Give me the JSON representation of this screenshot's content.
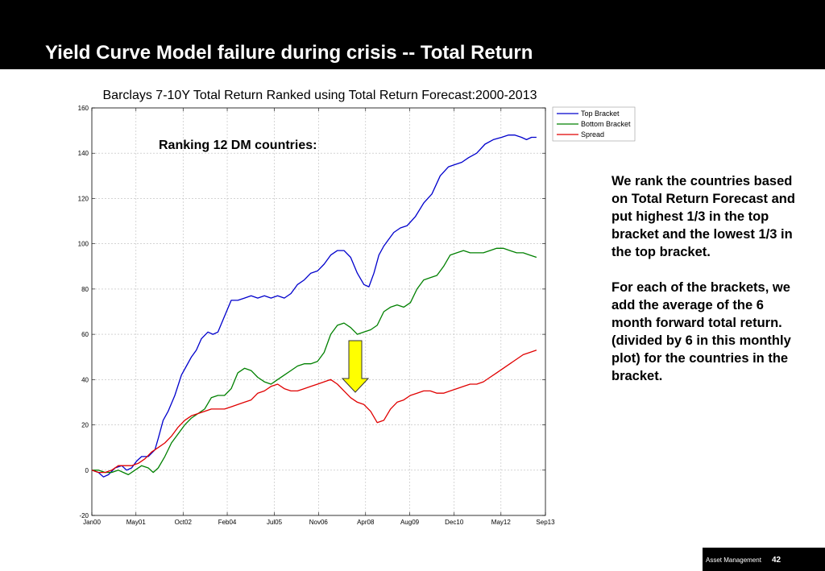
{
  "header": {
    "title": "Yield Curve Model failure during crisis -- Total Return"
  },
  "annotation": "Ranking 12 DM countries:",
  "side_note": {
    "paragraph1": "We rank the countries based on Total Return Forecast and put highest 1/3 in the top bracket and the lowest 1/3 in the top bracket.",
    "paragraph2": "For each of the brackets, we add the average of the 6 month forward total return. (divided by 6 in this monthly plot) for the countries in the bracket."
  },
  "footer": {
    "company": "Asset Management",
    "page": "42"
  },
  "chart_data": {
    "type": "line",
    "title": "Barclays 7-10Y Total Return Ranked using Total Return Forecast:2000-2013",
    "xlabel": "",
    "ylabel": "",
    "xlim": [
      2000.0,
      2013.67
    ],
    "ylim": [
      -20,
      160
    ],
    "grid": true,
    "legend_position": "top-right",
    "x_ticks": [
      {
        "label": "Jan00",
        "x": 2000.0
      },
      {
        "label": "May01",
        "x": 2001.33
      },
      {
        "label": "Oct02",
        "x": 2002.75
      },
      {
        "label": "Feb04",
        "x": 2004.08
      },
      {
        "label": "Jul05",
        "x": 2005.5
      },
      {
        "label": "Nov06",
        "x": 2006.83
      },
      {
        "label": "Apr08",
        "x": 2008.25
      },
      {
        "label": "Aug09",
        "x": 2009.58
      },
      {
        "label": "Dec10",
        "x": 2010.92
      },
      {
        "label": "May12",
        "x": 2012.33
      },
      {
        "label": "Sep13",
        "x": 2013.67
      }
    ],
    "y_ticks": [
      -20,
      0,
      20,
      40,
      60,
      80,
      100,
      120,
      140,
      160
    ],
    "series": [
      {
        "name": "Top Bracket",
        "color": "#0000cc",
        "x": [
          2000.0,
          2000.2,
          2000.35,
          2000.5,
          2000.7,
          2000.9,
          2001.05,
          2001.2,
          2001.35,
          2001.5,
          2001.7,
          2001.9,
          2002.0,
          2002.15,
          2002.3,
          2002.5,
          2002.7,
          2002.85,
          2003.0,
          2003.15,
          2003.3,
          2003.5,
          2003.65,
          2003.8,
          2004.0,
          2004.2,
          2004.4,
          2004.6,
          2004.8,
          2005.0,
          2005.2,
          2005.4,
          2005.6,
          2005.8,
          2006.0,
          2006.2,
          2006.4,
          2006.6,
          2006.8,
          2007.0,
          2007.2,
          2007.4,
          2007.6,
          2007.8,
          2008.0,
          2008.2,
          2008.35,
          2008.5,
          2008.65,
          2008.8,
          2008.95,
          2009.1,
          2009.3,
          2009.5,
          2009.75,
          2010.0,
          2010.25,
          2010.5,
          2010.75,
          2010.95,
          2011.15,
          2011.35,
          2011.6,
          2011.85,
          2012.1,
          2012.35,
          2012.55,
          2012.75,
          2012.95,
          2013.1,
          2013.25,
          2013.4
        ],
        "values": [
          0,
          -1,
          -3,
          -2,
          1,
          2,
          0,
          1,
          4,
          6,
          6,
          9,
          14,
          22,
          26,
          33,
          42,
          46,
          50,
          53,
          58,
          61,
          60,
          61,
          68,
          75,
          75,
          76,
          77,
          76,
          77,
          76,
          77,
          76,
          78,
          82,
          84,
          87,
          88,
          91,
          95,
          97,
          97,
          94,
          87,
          82,
          81,
          87,
          95,
          99,
          102,
          105,
          107,
          108,
          112,
          118,
          122,
          130,
          134,
          135,
          136,
          138,
          140,
          144,
          146,
          147,
          148,
          148,
          147,
          146,
          147,
          147
        ]
      },
      {
        "name": "Bottom Bracket",
        "color": "#008000",
        "x": [
          2000.0,
          2000.2,
          2000.4,
          2000.6,
          2000.8,
          2000.95,
          2001.1,
          2001.3,
          2001.5,
          2001.7,
          2001.85,
          2002.0,
          2002.2,
          2002.4,
          2002.6,
          2002.8,
          2003.0,
          2003.2,
          2003.4,
          2003.6,
          2003.8,
          2004.0,
          2004.2,
          2004.4,
          2004.6,
          2004.8,
          2005.0,
          2005.2,
          2005.4,
          2005.6,
          2005.8,
          2006.0,
          2006.2,
          2006.4,
          2006.6,
          2006.8,
          2007.0,
          2007.2,
          2007.4,
          2007.6,
          2007.8,
          2008.0,
          2008.2,
          2008.4,
          2008.6,
          2008.8,
          2009.0,
          2009.2,
          2009.4,
          2009.6,
          2009.8,
          2010.0,
          2010.2,
          2010.4,
          2010.6,
          2010.8,
          2011.0,
          2011.2,
          2011.4,
          2011.6,
          2011.8,
          2012.0,
          2012.2,
          2012.4,
          2012.6,
          2012.8,
          2013.0,
          2013.2,
          2013.4
        ],
        "values": [
          0,
          0,
          -1,
          -1,
          0,
          -1,
          -2,
          0,
          2,
          1,
          -1,
          1,
          6,
          12,
          16,
          20,
          23,
          25,
          27,
          32,
          33,
          33,
          36,
          43,
          45,
          44,
          41,
          39,
          38,
          40,
          42,
          44,
          46,
          47,
          47,
          48,
          52,
          60,
          64,
          65,
          63,
          60,
          61,
          62,
          64,
          70,
          72,
          73,
          72,
          74,
          80,
          84,
          85,
          86,
          90,
          95,
          96,
          97,
          96,
          96,
          96,
          97,
          98,
          98,
          97,
          96,
          96,
          95,
          94
        ]
      },
      {
        "name": "Spread",
        "color": "#e00000",
        "x": [
          2000.0,
          2000.2,
          2000.4,
          2000.6,
          2000.8,
          2001.0,
          2001.2,
          2001.4,
          2001.6,
          2001.8,
          2002.0,
          2002.2,
          2002.4,
          2002.6,
          2002.8,
          2003.0,
          2003.2,
          2003.4,
          2003.6,
          2003.8,
          2004.0,
          2004.2,
          2004.4,
          2004.6,
          2004.8,
          2005.0,
          2005.2,
          2005.4,
          2005.6,
          2005.8,
          2006.0,
          2006.2,
          2006.4,
          2006.6,
          2006.8,
          2007.0,
          2007.2,
          2007.4,
          2007.6,
          2007.8,
          2008.0,
          2008.2,
          2008.4,
          2008.6,
          2008.8,
          2009.0,
          2009.2,
          2009.4,
          2009.6,
          2009.8,
          2010.0,
          2010.2,
          2010.4,
          2010.6,
          2010.8,
          2011.0,
          2011.2,
          2011.4,
          2011.6,
          2011.8,
          2012.0,
          2012.2,
          2012.4,
          2012.6,
          2012.8,
          2013.0,
          2013.2,
          2013.4
        ],
        "values": [
          0,
          -1,
          -1,
          0,
          2,
          2,
          2,
          3,
          5,
          8,
          10,
          12,
          15,
          19,
          22,
          24,
          25,
          26,
          27,
          27,
          27,
          28,
          29,
          30,
          31,
          34,
          35,
          37,
          38,
          36,
          35,
          35,
          36,
          37,
          38,
          39,
          40,
          38,
          35,
          32,
          30,
          29,
          26,
          21,
          22,
          27,
          30,
          31,
          33,
          34,
          35,
          35,
          34,
          34,
          35,
          36,
          37,
          38,
          38,
          39,
          41,
          43,
          45,
          47,
          49,
          51,
          52,
          53
        ]
      }
    ]
  }
}
